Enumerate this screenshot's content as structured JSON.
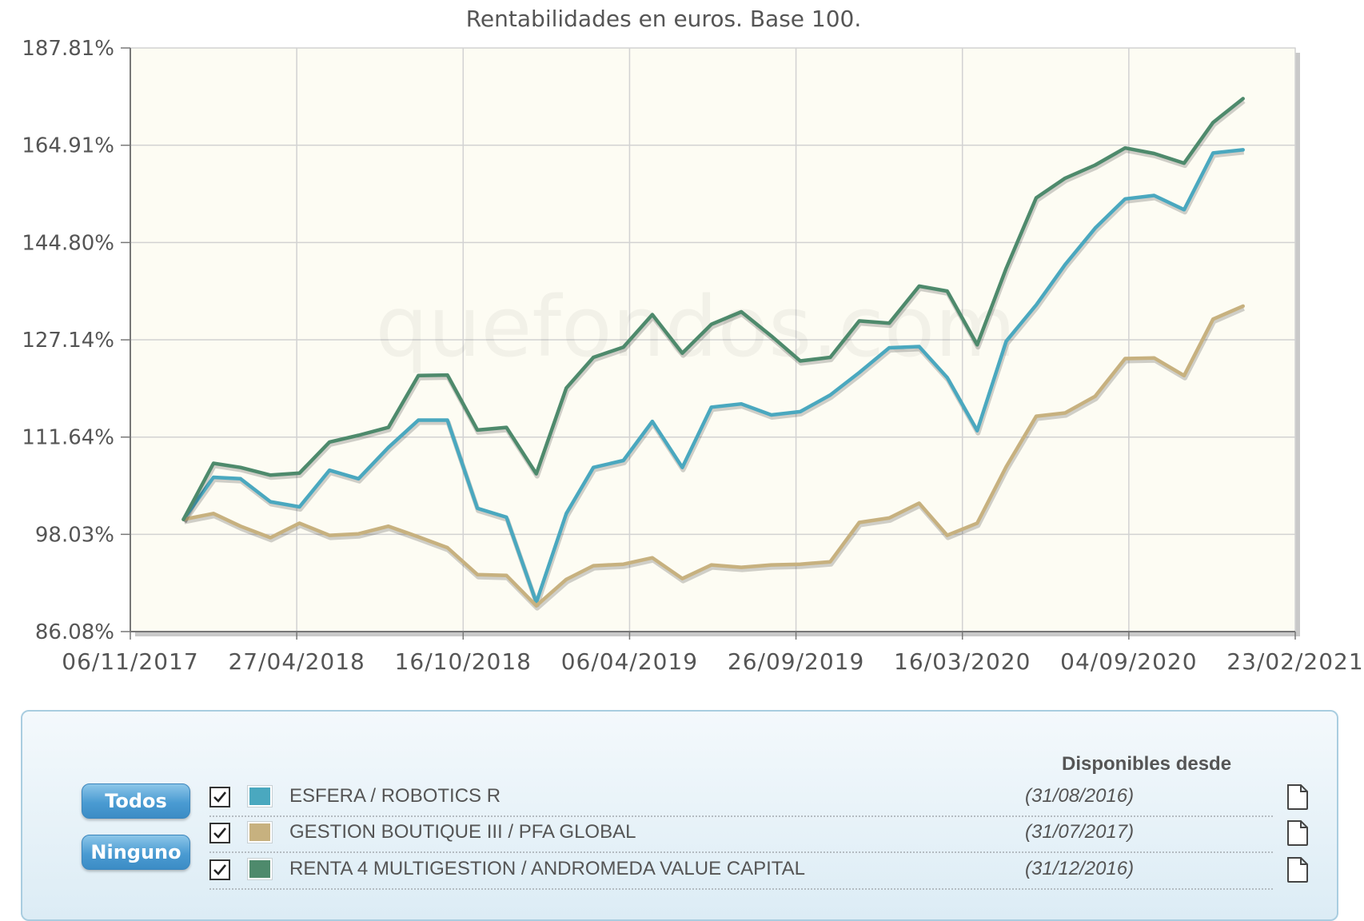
{
  "chart_data": {
    "type": "line",
    "title": "Rentabilidades en euros. Base 100.",
    "watermark": "quefondos.com",
    "y_ticks": [
      "187.81%",
      "164.91%",
      "144.80%",
      "127.14%",
      "111.64%",
      "98.03%",
      "86.08%"
    ],
    "x_ticks": [
      "06/11/2017",
      "27/04/2018",
      "16/10/2018",
      "06/04/2019",
      "26/09/2019",
      "16/03/2020",
      "04/09/2020",
      "23/02/2021"
    ],
    "x_range": [
      "2017-11-06",
      "2021-02-23"
    ],
    "log_scale": true,
    "grid": true,
    "legend": "bottom",
    "dates": [
      "2017-12-31",
      "2018-01-31",
      "2018-02-28",
      "2018-03-31",
      "2018-04-30",
      "2018-05-31",
      "2018-06-30",
      "2018-07-31",
      "2018-08-31",
      "2018-09-30",
      "2018-10-31",
      "2018-11-30",
      "2018-12-31",
      "2019-01-31",
      "2019-02-28",
      "2019-03-31",
      "2019-04-30",
      "2019-05-31",
      "2019-06-30",
      "2019-07-31",
      "2019-08-31",
      "2019-09-30",
      "2019-10-31",
      "2019-11-30",
      "2019-12-31",
      "2020-01-31",
      "2020-02-29",
      "2020-03-31",
      "2020-04-30",
      "2020-05-31",
      "2020-06-30",
      "2020-07-31",
      "2020-08-31",
      "2020-09-30",
      "2020-10-31",
      "2020-11-30",
      "2020-12-31",
      "2021-01-31"
    ],
    "series": [
      {
        "name": "ESFERA / ROBOTICS R",
        "color": "#4aa8bf",
        "values": [
          100.0,
          105.8,
          105.6,
          102.4,
          101.7,
          106.8,
          105.6,
          110.1,
          114.2,
          114.2,
          101.5,
          100.3,
          89.5,
          100.8,
          107.2,
          108.2,
          114.0,
          107.2,
          116.2,
          116.7,
          115.0,
          115.5,
          118.1,
          121.7,
          125.8,
          126.0,
          120.9,
          112.6,
          126.9,
          133.2,
          140.6,
          147.6,
          153.5,
          154.2,
          151.3,
          163.2,
          163.9,
          null
        ]
      },
      {
        "name": "GESTION BOUTIQUE III / PFA GLOBAL",
        "color": "#c7b17f",
        "values": [
          100.0,
          100.8,
          99.1,
          97.6,
          99.5,
          97.9,
          98.1,
          99.1,
          97.7,
          96.3,
          92.9,
          92.8,
          89.1,
          92.3,
          94.0,
          94.2,
          95.0,
          92.4,
          94.1,
          93.8,
          94.1,
          94.2,
          94.5,
          99.6,
          100.2,
          102.2,
          97.9,
          99.5,
          107.3,
          114.8,
          115.3,
          117.9,
          124.0,
          124.1,
          121.2,
          130.7,
          133.0,
          null
        ]
      },
      {
        "name": "RENTA 4 MULTIGESTION / ANDROMEDA VALUE CAPITAL",
        "color": "#4e8a6c",
        "values": [
          100.0,
          107.8,
          107.2,
          106.1,
          106.4,
          110.9,
          111.9,
          113.1,
          121.2,
          121.3,
          112.7,
          113.1,
          106.3,
          119.2,
          124.2,
          125.9,
          131.5,
          124.9,
          129.8,
          132.0,
          127.8,
          123.6,
          124.2,
          130.4,
          130.0,
          136.6,
          135.7,
          126.3,
          139.9,
          153.7,
          157.8,
          160.6,
          164.3,
          163.1,
          161.0,
          170.0,
          175.5,
          null
        ]
      }
    ]
  },
  "legend": {
    "btn_all": "Todos",
    "btn_none": "Ninguno",
    "available_header": "Disponibles desde",
    "rows": [
      {
        "name": "ESFERA / ROBOTICS R",
        "date": "(31/08/2016)",
        "color": "#4aa8bf",
        "checked": true
      },
      {
        "name": "GESTION BOUTIQUE III / PFA GLOBAL",
        "date": "(31/07/2017)",
        "color": "#c7b17f",
        "checked": true
      },
      {
        "name": "RENTA 4 MULTIGESTION / ANDROMEDA VALUE CAPITAL",
        "date": "(31/12/2016)",
        "color": "#4e8a6c",
        "checked": true
      }
    ]
  }
}
